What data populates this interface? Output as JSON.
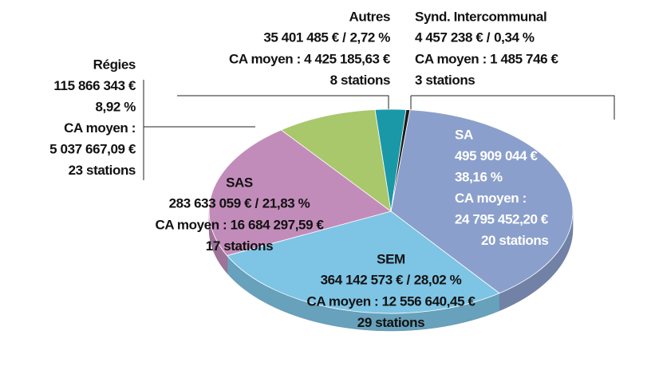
{
  "chart_data": {
    "type": "pie",
    "categories": [
      "SA",
      "SEM",
      "SAS",
      "Régies",
      "Autres",
      "Synd. Intercommunal"
    ],
    "values": [
      38.16,
      28.02,
      21.83,
      8.92,
      2.72,
      0.34
    ],
    "value_labels": [
      "38,16 %",
      "28,02 %",
      "21,83 %",
      "8,92 %",
      "2,72 %",
      "0,34 %"
    ],
    "amount_labels": [
      "495 909 044 €",
      "364 142 573 € /",
      "283 633 059 € /",
      "115 866 343 €",
      "35 401 485 € /",
      "4 457 238 € /"
    ],
    "average_labels": [
      [
        "CA moyen :",
        "24 795 452,20 €"
      ],
      [
        "CA moyen : 12 556 640,45 €"
      ],
      [
        "CA moyen : 16 684 297,59 €"
      ],
      [
        "CA moyen :",
        "5 037 667,09 €"
      ],
      [
        "CA moyen : 4 425 185,63 €"
      ],
      [
        "CA moyen : 1 485 746 €"
      ]
    ],
    "station_labels": [
      "20 stations",
      "29 stations",
      "17 stations",
      "23 stations",
      "8 stations",
      "3 stations"
    ],
    "colors": [
      "#8a9fcb",
      "#7ec4e4",
      "#c28cba",
      "#a9c76b",
      "#1a98a8",
      "#1b1b1b"
    ]
  }
}
